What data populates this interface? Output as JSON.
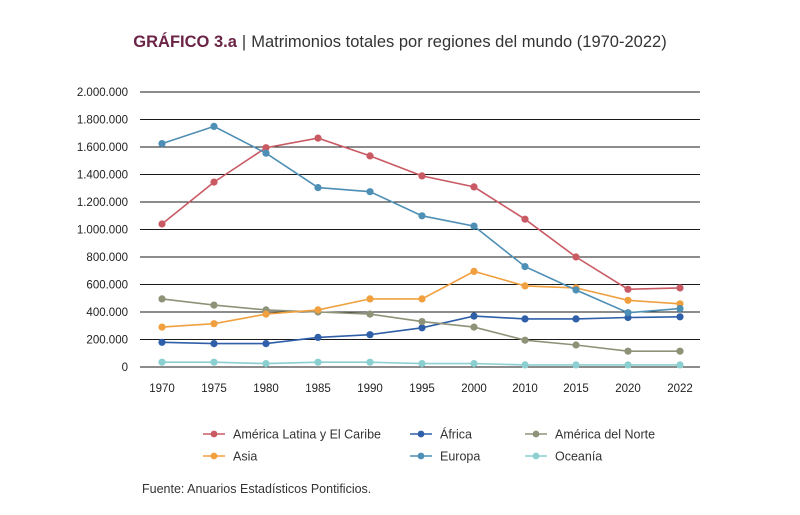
{
  "chart_data": {
    "type": "line",
    "title_label": "GRÁFICO 3.a",
    "title_separator": "|",
    "title": "Matrimonios totales por regiones del mundo (1970-2022)",
    "categories": [
      "1970",
      "1975",
      "1980",
      "1985",
      "1990",
      "1995",
      "2000",
      "2010",
      "2015",
      "2020",
      "2022"
    ],
    "ylim": [
      0,
      2000000
    ],
    "yticks": [
      0,
      200000,
      400000,
      600000,
      800000,
      1000000,
      1200000,
      1400000,
      1600000,
      1800000,
      2000000
    ],
    "ytick_labels": [
      "0",
      "200.000",
      "400.000",
      "600.000",
      "800.000",
      "1.000.000",
      "1.200.000",
      "1.400.000",
      "1.600.000",
      "1.800.000",
      "2.000.000"
    ],
    "grid": true,
    "legend_position": "bottom",
    "series": [
      {
        "name": "América Latina y El Caribe",
        "color": "#c95a63",
        "values": [
          1040000,
          1345000,
          1595000,
          1665000,
          1535000,
          1390000,
          1310000,
          1075000,
          800000,
          565000,
          575000
        ]
      },
      {
        "name": "África",
        "color": "#2f5fa8",
        "values": [
          180000,
          170000,
          170000,
          215000,
          235000,
          285000,
          370000,
          350000,
          350000,
          360000,
          365000
        ]
      },
      {
        "name": "América del Norte",
        "color": "#8e9378",
        "values": [
          495000,
          450000,
          415000,
          400000,
          385000,
          330000,
          290000,
          195000,
          160000,
          115000,
          115000
        ]
      },
      {
        "name": "Asia",
        "color": "#f0a03f",
        "values": [
          290000,
          315000,
          385000,
          415000,
          495000,
          495000,
          695000,
          590000,
          575000,
          485000,
          460000
        ]
      },
      {
        "name": "Europa",
        "color": "#4e8fb5",
        "values": [
          1625000,
          1750000,
          1555000,
          1305000,
          1275000,
          1100000,
          1025000,
          730000,
          560000,
          395000,
          425000
        ]
      },
      {
        "name": "Oceanía",
        "color": "#8ccfd0",
        "values": [
          35000,
          35000,
          25000,
          35000,
          35000,
          25000,
          25000,
          15000,
          15000,
          15000,
          15000
        ]
      }
    ],
    "source": "Fuente: Anuarios Estadísticos Pontificios."
  }
}
